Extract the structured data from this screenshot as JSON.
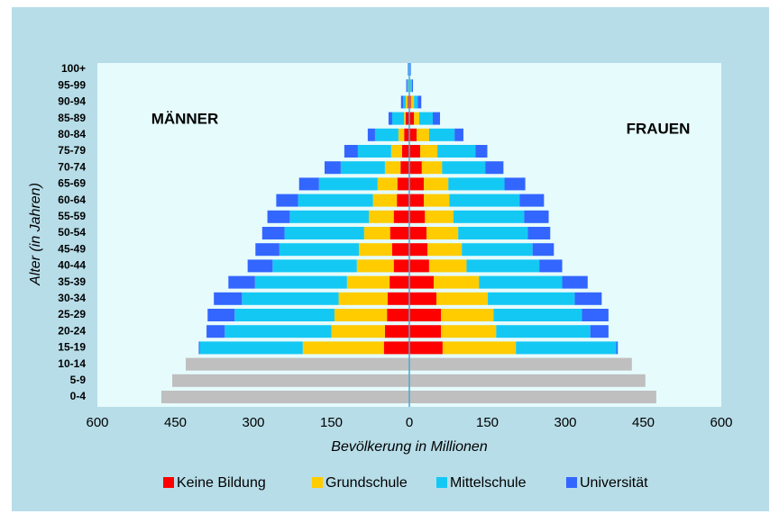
{
  "chart_data": {
    "type": "pyramid",
    "x_label": "Bevölkerung in Millionen",
    "y_label": "Alter (in Jahren)",
    "left_label": "MÄNNER",
    "right_label": "FRAUEN",
    "categories": [
      "0-4",
      "5-9",
      "10-14",
      "15-19",
      "20-24",
      "25-29",
      "30-34",
      "35-39",
      "40-44",
      "45-49",
      "50-54",
      "55-59",
      "60-64",
      "65-69",
      "70-74",
      "75-79",
      "80-84",
      "85-89",
      "90-94",
      "95-99",
      "100+"
    ],
    "xlim": [
      -600,
      600
    ],
    "xticks": [
      {
        "value": -600,
        "label": "600"
      },
      {
        "value": -450,
        "label": "450"
      },
      {
        "value": -300,
        "label": "300"
      },
      {
        "value": -150,
        "label": "150"
      },
      0,
      150,
      300,
      450,
      600
    ],
    "total_only": {
      "color": "#bfbfbf",
      "men": [
        -477,
        -456,
        -430,
        null,
        null,
        null,
        null,
        null,
        null,
        null,
        null,
        null,
        null,
        null,
        null,
        null,
        null,
        null,
        null,
        null,
        null
      ],
      "women": [
        475,
        454,
        428,
        null,
        null,
        null,
        null,
        null,
        null,
        null,
        null,
        null,
        null,
        null,
        null,
        null,
        null,
        null,
        null,
        null,
        null
      ]
    },
    "series": [
      {
        "name": "Keine Bildung",
        "color": "#ff0000",
        "men": [
          null,
          null,
          null,
          -49,
          -47,
          -43,
          -42,
          -38,
          -30,
          -33,
          -37,
          -30,
          -24,
          -23,
          -17,
          -14,
          -10,
          -7,
          -3,
          -1,
          -0.5
        ],
        "women": [
          null,
          null,
          null,
          64,
          61,
          61,
          52,
          47,
          38,
          35,
          33,
          30,
          28,
          28,
          24,
          21,
          14,
          9,
          3,
          1,
          0.5
        ]
      },
      {
        "name": "Grundschule",
        "color": "#ffcc00",
        "men": [
          null,
          null,
          null,
          -156,
          -103,
          -101,
          -94,
          -82,
          -71,
          -64,
          -50,
          -48,
          -46,
          -38,
          -30,
          -21,
          -11,
          -3,
          -4,
          -1,
          -0.5
        ],
        "women": [
          null,
          null,
          null,
          141,
          106,
          101,
          99,
          87,
          72,
          66,
          61,
          55,
          49,
          47,
          39,
          33,
          24,
          10,
          6,
          1,
          0.5
        ]
      },
      {
        "name": "Mittelschule",
        "color": "#14c8f4",
        "men": [
          null,
          null,
          null,
          -198,
          -205,
          -192,
          -186,
          -177,
          -162,
          -153,
          -153,
          -152,
          -144,
          -113,
          -85,
          -64,
          -45,
          -23,
          -5,
          -2,
          -1
        ],
        "women": [
          null,
          null,
          null,
          193,
          181,
          170,
          167,
          160,
          140,
          136,
          134,
          136,
          135,
          108,
          83,
          73,
          49,
          26,
          7,
          3,
          1
        ]
      },
      {
        "name": "Universität",
        "color": "#3366ff",
        "men": [
          null,
          null,
          null,
          -2,
          -35,
          -52,
          -54,
          -51,
          -48,
          -46,
          -43,
          -43,
          -42,
          -38,
          -31,
          -26,
          -14,
          -7,
          -4,
          -2,
          -1
        ],
        "women": [
          null,
          null,
          null,
          3,
          35,
          51,
          52,
          49,
          44,
          41,
          43,
          47,
          47,
          40,
          35,
          23,
          17,
          14,
          7,
          2,
          1
        ]
      }
    ]
  }
}
